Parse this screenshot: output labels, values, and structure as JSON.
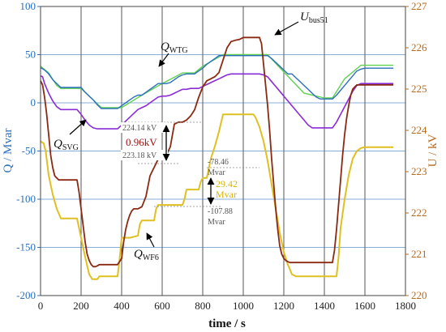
{
  "chart_data": {
    "type": "line",
    "xlabel": "time / s",
    "ylabel_left": "Q / Mvar",
    "ylabel_right": "U / kV",
    "xlim": [
      0,
      1800
    ],
    "ylim_left": [
      -200,
      100
    ],
    "ylim_right": [
      220,
      227
    ],
    "x_ticks": [
      "0",
      "200",
      "400",
      "600",
      "800",
      "1000",
      "1200",
      "1400",
      "1600",
      "1800"
    ],
    "y_left_ticks": [
      "100",
      "50",
      "0",
      "-50",
      "-100",
      "-150",
      "-200"
    ],
    "y_right_ticks": [
      "227",
      "226",
      "225",
      "224",
      "223",
      "222",
      "221",
      "220"
    ],
    "grid": true,
    "colors": {
      "left_axis": "#2a6fbd",
      "right_axis": "#b56a1e",
      "q_green": "#5fd14f",
      "q_blue": "#2a6fbd",
      "q_svg": "#8a2bd6",
      "q_wf6": "#e0c021",
      "u_bus": "#8b2a12"
    },
    "series": [
      {
        "key": "q_blue",
        "axis": "left",
        "x": [
          0,
          5,
          20,
          30,
          40,
          50,
          60,
          80,
          100,
          200,
          220,
          240,
          260,
          280,
          300,
          380,
          400,
          420,
          440,
          460,
          480,
          500,
          520,
          540,
          560,
          580,
          600,
          620,
          640,
          660,
          680,
          700,
          720,
          740,
          760,
          780,
          800,
          820,
          840,
          860,
          880,
          900,
          920,
          940,
          960,
          980,
          1000,
          1120,
          1140,
          1160,
          1180,
          1200,
          1220,
          1240,
          1260,
          1280,
          1300,
          1320,
          1340,
          1360,
          1380,
          1400,
          1420,
          1440,
          1460,
          1480,
          1500,
          1520,
          1540,
          1560,
          1580,
          1600,
          1620,
          1740
        ],
        "y": [
          36,
          36,
          34,
          32,
          30,
          27,
          24,
          20,
          16,
          16,
          11,
          7,
          3,
          -2,
          -6,
          -6,
          -3,
          0,
          3,
          6,
          8,
          8,
          11,
          14,
          17,
          20,
          20,
          20,
          21,
          24,
          27,
          29,
          30,
          30,
          30,
          33,
          36,
          40,
          43,
          46,
          49,
          49,
          49,
          49,
          49,
          49,
          49,
          49,
          46,
          42,
          38,
          34,
          30,
          30,
          26,
          22,
          18,
          14,
          10,
          6,
          4,
          4,
          4,
          4,
          8,
          13,
          18,
          23,
          28,
          33,
          35,
          36,
          36,
          36
        ]
      },
      {
        "key": "q_green",
        "axis": "left",
        "x": [
          0,
          40,
          80,
          100,
          200,
          300,
          400,
          500,
          600,
          700,
          760,
          800,
          900,
          1000,
          1120,
          1200,
          1300,
          1400,
          1440,
          1500,
          1580,
          1600,
          1740
        ],
        "y": [
          38,
          31,
          18,
          15,
          15,
          -5,
          -5,
          8,
          20,
          31,
          31,
          38,
          50,
          50,
          50,
          32,
          10,
          5,
          5,
          25,
          39,
          39,
          39
        ]
      },
      {
        "key": "q_svg",
        "axis": "left",
        "x": [
          0,
          10,
          20,
          40,
          60,
          80,
          100,
          180,
          200,
          220,
          240,
          260,
          280,
          380,
          400,
          420,
          440,
          460,
          480,
          500,
          520,
          540,
          560,
          580,
          600,
          620,
          640,
          660,
          680,
          700,
          720,
          740,
          760,
          780,
          800,
          820,
          840,
          860,
          880,
          900,
          920,
          940,
          960,
          980,
          1000,
          1080,
          1100,
          1120,
          1140,
          1160,
          1180,
          1200,
          1220,
          1240,
          1260,
          1280,
          1300,
          1320,
          1340,
          1360,
          1380,
          1400,
          1420,
          1440,
          1460,
          1480,
          1500,
          1520,
          1540,
          1560,
          1580,
          1600,
          1620,
          1740
        ],
        "y": [
          28,
          27,
          20,
          10,
          2,
          -4,
          -7,
          -7,
          -12,
          -18,
          -23,
          -26,
          -27,
          -27,
          -23,
          -19,
          -15,
          -11,
          -7,
          -5,
          -3,
          0,
          3,
          6,
          7,
          7,
          8,
          10,
          12,
          14,
          14,
          15,
          15,
          15,
          17,
          19,
          21,
          23,
          25,
          27,
          29,
          30,
          30,
          30,
          30,
          30,
          29,
          27,
          22,
          17,
          12,
          7,
          2,
          -3,
          -8,
          -13,
          -18,
          -23,
          -26,
          -26,
          -26,
          -26,
          -26,
          -26,
          -20,
          -12,
          -4,
          4,
          12,
          18,
          20,
          20,
          20,
          20
        ]
      },
      {
        "key": "q_wf6",
        "axis": "left",
        "x": [
          0,
          15,
          25,
          40,
          60,
          80,
          100,
          180,
          190,
          200,
          220,
          240,
          255,
          265,
          280,
          290,
          300,
          380,
          390,
          400,
          420,
          440,
          480,
          490,
          500,
          520,
          560,
          570,
          580,
          600,
          700,
          710,
          720,
          780,
          790,
          800,
          820,
          840,
          860,
          880,
          900,
          960,
          980,
          1000,
          1040,
          1050,
          1060,
          1080,
          1100,
          1120,
          1140,
          1160,
          1180,
          1200,
          1220,
          1240,
          1260,
          1280,
          1300,
          1320,
          1340,
          1360,
          1380,
          1400,
          1420,
          1440,
          1460,
          1470,
          1480,
          1500,
          1520,
          1540,
          1560,
          1580,
          1600,
          1620,
          1740
        ],
        "y": [
          -40,
          -42,
          -50,
          -75,
          -95,
          -110,
          -120,
          -120,
          -130,
          -140,
          -160,
          -178,
          -183,
          -183,
          -183,
          -180,
          -180,
          -180,
          -162,
          -140,
          -140,
          -140,
          -138,
          -126,
          -122,
          -122,
          -122,
          -110,
          -106,
          -106,
          -106,
          -100,
          -90,
          -90,
          -82,
          -78,
          -78,
          -58,
          -45,
          -30,
          -12,
          -12,
          -12,
          -12,
          -12,
          -12,
          -15,
          -25,
          -40,
          -60,
          -85,
          -110,
          -135,
          -155,
          -168,
          -178,
          -180,
          -180,
          -180,
          -180,
          -180,
          -180,
          -180,
          -180,
          -180,
          -180,
          -180,
          -160,
          -130,
          -100,
          -75,
          -58,
          -50,
          -47,
          -46,
          -46,
          -46
        ]
      },
      {
        "key": "u_bus",
        "axis": "right",
        "x": [
          0,
          10,
          20,
          30,
          40,
          50,
          60,
          70,
          80,
          90,
          100,
          180,
          190,
          200,
          210,
          220,
          230,
          240,
          250,
          260,
          270,
          280,
          290,
          300,
          380,
          400,
          410,
          420,
          430,
          440,
          450,
          460,
          480,
          500,
          520,
          540,
          560,
          580,
          590,
          600,
          610,
          620,
          640,
          660,
          680,
          690,
          700,
          720,
          740,
          760,
          780,
          800,
          820,
          840,
          860,
          880,
          900,
          920,
          940,
          960,
          980,
          1000,
          1040,
          1080,
          1090,
          1100,
          1110,
          1120,
          1130,
          1140,
          1150,
          1160,
          1170,
          1180,
          1190,
          1200,
          1210,
          1220,
          1230,
          1240,
          1250,
          1260,
          1270,
          1280,
          1300,
          1380,
          1400,
          1420,
          1440,
          1450,
          1460,
          1470,
          1480,
          1490,
          1500,
          1510,
          1520,
          1530,
          1540,
          1550,
          1560,
          1580,
          1600,
          1640,
          1740
        ],
        "y": [
          225.2,
          225.1,
          224.8,
          224.4,
          223.9,
          223.4,
          223.1,
          222.9,
          222.85,
          222.8,
          222.8,
          222.8,
          222.5,
          222.1,
          221.7,
          221.3,
          221.0,
          220.85,
          220.75,
          220.7,
          220.7,
          220.72,
          220.75,
          220.75,
          220.75,
          220.9,
          221.3,
          221.6,
          221.8,
          221.95,
          222.05,
          222.1,
          222.1,
          222.15,
          222.4,
          222.9,
          223.1,
          223.3,
          223.3,
          223.3,
          223.32,
          223.4,
          223.6,
          224.15,
          224.2,
          224.2,
          224.2,
          224.25,
          224.35,
          224.5,
          224.8,
          225.05,
          225.2,
          225.25,
          225.3,
          225.4,
          225.7,
          226.0,
          226.15,
          226.18,
          226.2,
          226.25,
          226.25,
          226.25,
          226.1,
          225.6,
          225.1,
          224.6,
          224.0,
          223.3,
          222.7,
          222.1,
          221.6,
          221.2,
          221.0,
          220.9,
          220.85,
          220.82,
          220.8,
          220.8,
          220.8,
          220.8,
          220.8,
          220.8,
          220.8,
          220.8,
          220.8,
          220.8,
          220.8,
          221.1,
          221.6,
          222.2,
          222.8,
          223.4,
          223.9,
          224.3,
          224.6,
          224.85,
          225.0,
          225.05,
          225.1,
          225.1,
          225.1,
          225.1,
          225.1
        ]
      }
    ],
    "series_labels": {
      "wtg": {
        "main": "Q",
        "sub": "WTG"
      },
      "svg": {
        "main": "Q",
        "sub": "SVG"
      },
      "wf6": {
        "main": "Q",
        "sub": "WF6"
      },
      "bus": {
        "main": "U",
        "sub": "bus51"
      }
    },
    "annotations": {
      "u_high": {
        "text": "224.14 kV",
        "y": 224.14
      },
      "u_low": {
        "text": "223.18 kV",
        "y": 223.18
      },
      "u_delta": {
        "text": "0.96kV"
      },
      "q_high_value": {
        "text": "-78.46",
        "y": -78.46
      },
      "q_high_unit": {
        "text": "Mvar"
      },
      "q_low_value": {
        "text": "-107.88",
        "y": -107.88
      },
      "q_low_unit": {
        "text": "Mvar"
      },
      "q_delta_value": {
        "text": "29.42"
      },
      "q_delta_unit": {
        "text": "Mvar"
      }
    }
  }
}
